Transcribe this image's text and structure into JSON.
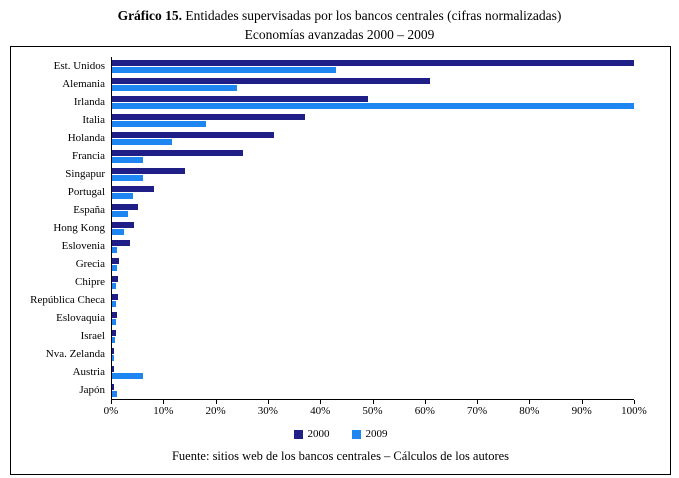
{
  "title": {
    "prefix": "Gráfico 15.",
    "rest": " Entidades supervisadas por los bancos centrales (cifras normalizadas)",
    "line2": "Economías avanzadas 2000 – 2009"
  },
  "source": "Fuente: sitios web de los bancos centrales – Cálculos de los autores",
  "colors": {
    "series_2000": "#1F1F87",
    "series_2009": "#1E86F0",
    "axis": "#000000",
    "border": "#000000"
  },
  "chart_data": {
    "type": "bar",
    "orientation": "horizontal",
    "title": "Gráfico 15. Entidades supervisadas por los bancos centrales (cifras normalizadas) — Economías avanzadas 2000 – 2009",
    "xlabel": "",
    "ylabel": "",
    "xlim": [
      0,
      100
    ],
    "grid": false,
    "legend_position": "bottom",
    "x_ticks": [
      "0%",
      "10%",
      "20%",
      "30%",
      "40%",
      "50%",
      "60%",
      "70%",
      "80%",
      "90%",
      "100%"
    ],
    "categories": [
      "Est. Unidos",
      "Alemania",
      "Irlanda",
      "Italia",
      "Holanda",
      "Francia",
      "Singapur",
      "Portugal",
      "España",
      "Hong Kong",
      "Eslovenia",
      "Grecia",
      "Chipre",
      "República Checa",
      "Eslovaquia",
      "Israel",
      "Nva. Zelanda",
      "Austria",
      "Japón"
    ],
    "series": [
      {
        "name": "2000",
        "color": "#1F1F87",
        "values": [
          100,
          61,
          49,
          37,
          31,
          25,
          14,
          8,
          5,
          4.3,
          3.5,
          1.4,
          1.1,
          1.1,
          1.0,
          0.7,
          0.4,
          0.4,
          0.3
        ]
      },
      {
        "name": "2009",
        "color": "#1E86F0",
        "values": [
          43,
          24,
          100,
          18,
          11.5,
          6,
          6,
          4,
          3,
          2.3,
          1,
          1,
          0.7,
          0.7,
          0.7,
          0.5,
          0.3,
          6,
          1
        ]
      }
    ]
  }
}
